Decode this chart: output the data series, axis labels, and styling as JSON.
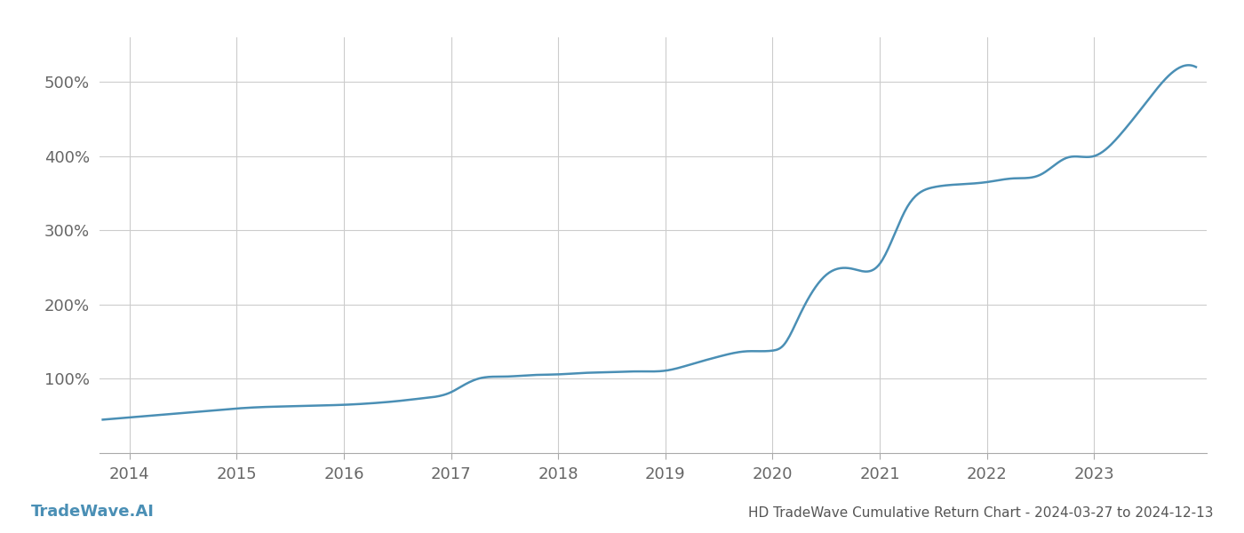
{
  "title": "HD TradeWave Cumulative Return Chart - 2024-03-27 to 2024-12-13",
  "watermark": "TradeWave.AI",
  "line_color": "#4a8fb5",
  "background_color": "#ffffff",
  "grid_color": "#cccccc",
  "x_years": [
    2014,
    2015,
    2016,
    2017,
    2018,
    2019,
    2020,
    2021,
    2022,
    2023
  ],
  "x_data": [
    2013.75,
    2014.0,
    2014.25,
    2014.5,
    2014.75,
    2015.0,
    2015.25,
    2015.5,
    2015.75,
    2016.0,
    2016.25,
    2016.5,
    2016.75,
    2017.0,
    2017.1,
    2017.25,
    2017.5,
    2017.75,
    2018.0,
    2018.25,
    2018.5,
    2018.75,
    2019.0,
    2019.25,
    2019.5,
    2019.75,
    2020.0,
    2020.1,
    2020.25,
    2020.5,
    2020.75,
    2021.0,
    2021.25,
    2021.5,
    2021.75,
    2022.0,
    2022.25,
    2022.5,
    2022.75,
    2023.0,
    2023.25,
    2023.5,
    2023.75,
    2023.95
  ],
  "y_data": [
    45,
    48,
    51,
    54,
    57,
    60,
    62,
    63,
    64,
    65,
    67,
    70,
    74,
    82,
    90,
    100,
    103,
    105,
    106,
    108,
    109,
    110,
    111,
    120,
    130,
    137,
    138,
    145,
    185,
    240,
    248,
    255,
    330,
    358,
    362,
    365,
    370,
    375,
    398,
    400,
    430,
    475,
    515,
    520
  ],
  "ylim": [
    0,
    560
  ],
  "xlim": [
    2013.72,
    2024.05
  ],
  "yticks": [
    100,
    200,
    300,
    400,
    500
  ],
  "ytick_labels": [
    "100%",
    "200%",
    "300%",
    "400%",
    "500%"
  ],
  "title_fontsize": 11,
  "tick_fontsize": 13,
  "watermark_fontsize": 13,
  "line_width": 1.8
}
